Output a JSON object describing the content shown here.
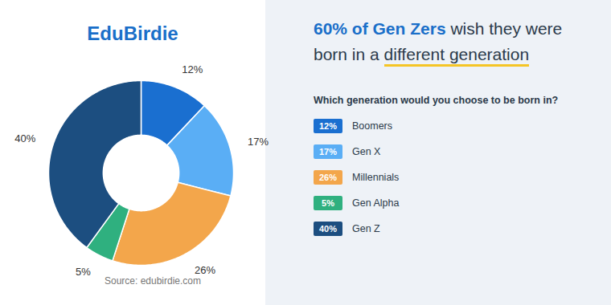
{
  "chart_data": {
    "type": "pie",
    "logo": "EduBirdie",
    "title": "60% of Gen Zers wish they were born in a different generation",
    "title_highlight": "60% of Gen Zers",
    "title_underline": "different generation",
    "subtitle": "Which generation would you choose to be born in?",
    "source": "Source: edubirdie.com",
    "categories": [
      "Boomers",
      "Gen X",
      "Millennials",
      "Gen Alpha",
      "Gen Z"
    ],
    "values": [
      12,
      17,
      26,
      5,
      40
    ],
    "value_labels": [
      "12%",
      "17%",
      "26%",
      "5%",
      "40%"
    ],
    "colors": [
      "#1a6fd0",
      "#5aaef5",
      "#f3a64b",
      "#2fb07f",
      "#1c4e80"
    ],
    "data_labels": true,
    "legend": "right"
  }
}
